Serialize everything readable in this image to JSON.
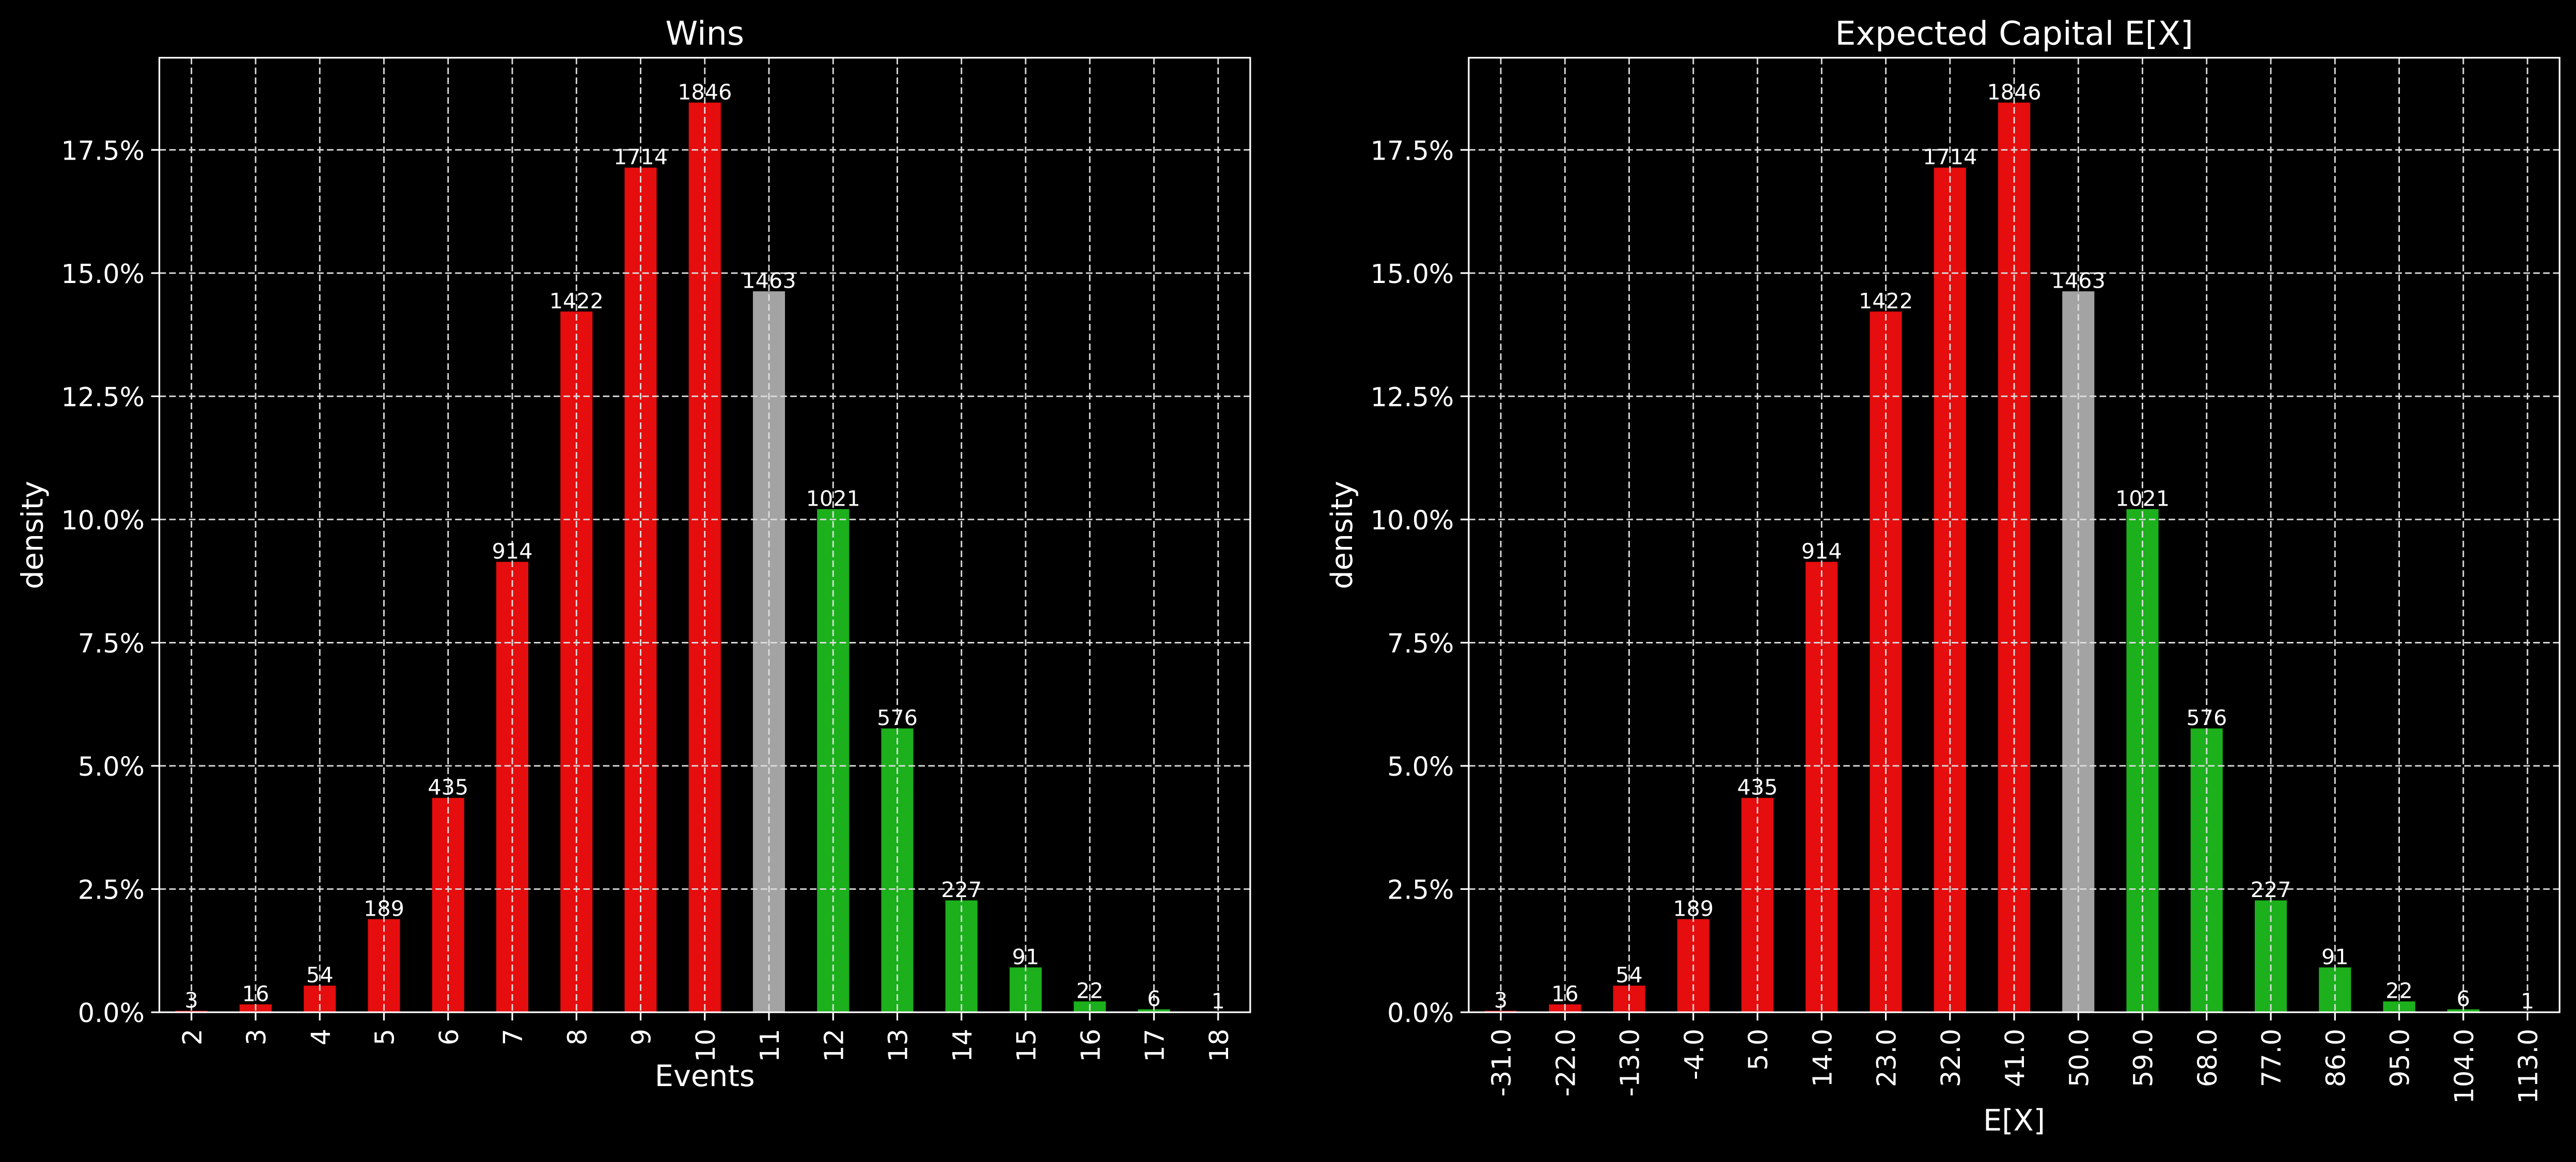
{
  "chart_data": [
    {
      "type": "bar",
      "title": "Wins",
      "x_label": "Events",
      "y_label": "density",
      "categories": [
        "2",
        "3",
        "4",
        "5",
        "6",
        "7",
        "8",
        "9",
        "10",
        "11",
        "12",
        "13",
        "14",
        "15",
        "16",
        "17",
        "18"
      ],
      "values": [
        0.03,
        0.16,
        0.54,
        1.89,
        4.35,
        9.14,
        14.22,
        17.14,
        18.46,
        14.63,
        10.21,
        5.76,
        2.27,
        0.91,
        0.22,
        0.06,
        0.01
      ],
      "value_labels": [
        "3",
        "16",
        "54",
        "189",
        "435",
        "914",
        "1422",
        "1714",
        "1846",
        "1463",
        "1021",
        "576",
        "227",
        "91",
        "22",
        "6",
        "1"
      ],
      "colors": [
        "#e50d0d",
        "#e50d0d",
        "#e50d0d",
        "#e50d0d",
        "#e50d0d",
        "#e50d0d",
        "#e50d0d",
        "#e50d0d",
        "#e50d0d",
        "#a3a3a3",
        "#1cb01c",
        "#1cb01c",
        "#1cb01c",
        "#1cb01c",
        "#1cb01c",
        "#1cb01c",
        "#1cb01c"
      ],
      "ylim": [
        0,
        19.37
      ],
      "yticks": [
        {
          "value": 0,
          "label": "0.0%"
        },
        {
          "value": 2.5,
          "label": "2.5%"
        },
        {
          "value": 5,
          "label": "5.0%"
        },
        {
          "value": 7.5,
          "label": "7.5%"
        },
        {
          "value": 10,
          "label": "10.0%"
        },
        {
          "value": 12.5,
          "label": "12.5%"
        },
        {
          "value": 15,
          "label": "15.0%"
        },
        {
          "value": 17.5,
          "label": "17.5%"
        }
      ],
      "grid": true
    },
    {
      "type": "bar",
      "title": "Expected Capital E[X]",
      "x_label": "E[X]",
      "y_label": "density",
      "categories": [
        "-31.0",
        "-22.0",
        "-13.0",
        "-4.0",
        "5.0",
        "14.0",
        "23.0",
        "32.0",
        "41.0",
        "50.0",
        "59.0",
        "68.0",
        "77.0",
        "86.0",
        "95.0",
        "104.0",
        "113.0"
      ],
      "values": [
        0.03,
        0.16,
        0.54,
        1.89,
        4.35,
        9.14,
        14.22,
        17.14,
        18.46,
        14.63,
        10.21,
        5.76,
        2.27,
        0.91,
        0.22,
        0.06,
        0.01
      ],
      "value_labels": [
        "3",
        "16",
        "54",
        "189",
        "435",
        "914",
        "1422",
        "1714",
        "1846",
        "1463",
        "1021",
        "576",
        "227",
        "91",
        "22",
        "6",
        "1"
      ],
      "colors": [
        "#e50d0d",
        "#e50d0d",
        "#e50d0d",
        "#e50d0d",
        "#e50d0d",
        "#e50d0d",
        "#e50d0d",
        "#e50d0d",
        "#e50d0d",
        "#a3a3a3",
        "#1cb01c",
        "#1cb01c",
        "#1cb01c",
        "#1cb01c",
        "#1cb01c",
        "#1cb01c",
        "#1cb01c"
      ],
      "ylim": [
        0,
        19.37
      ],
      "yticks": [
        {
          "value": 0,
          "label": "0.0%"
        },
        {
          "value": 2.5,
          "label": "2.5%"
        },
        {
          "value": 5,
          "label": "5.0%"
        },
        {
          "value": 7.5,
          "label": "7.5%"
        },
        {
          "value": 10,
          "label": "10.0%"
        },
        {
          "value": 12.5,
          "label": "12.5%"
        },
        {
          "value": 15,
          "label": "15.0%"
        },
        {
          "value": 17.5,
          "label": "17.5%"
        }
      ],
      "grid": true
    }
  ]
}
